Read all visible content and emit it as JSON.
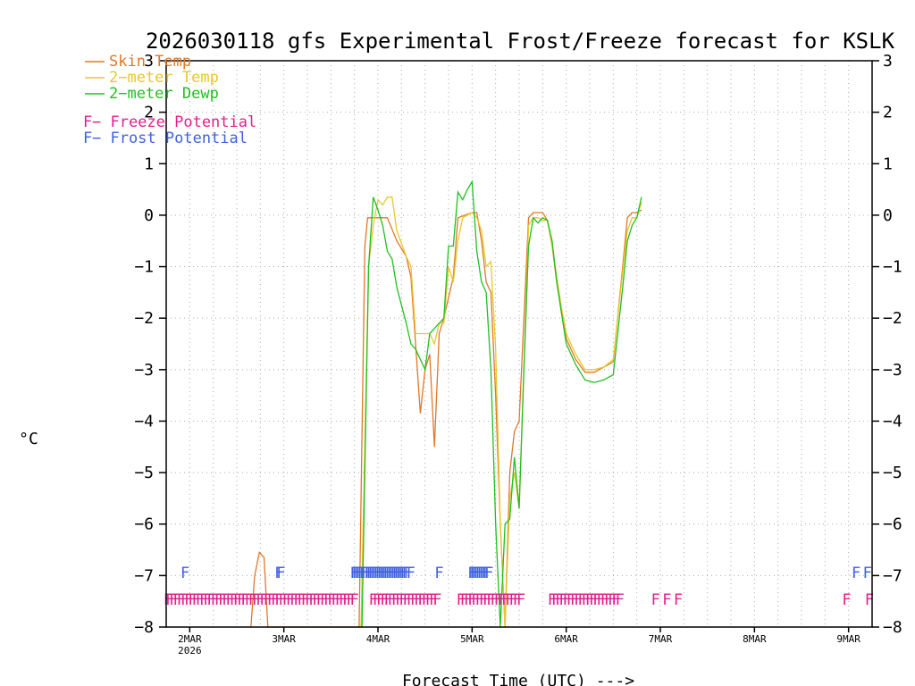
{
  "chart_data": {
    "type": "line",
    "title": "2026030118 gfs Experimental Frost/Freeze forecast for KSLK",
    "ylabel": "°C",
    "xlabel": "Forecast Time (UTC) --->",
    "ylim": [
      -8,
      3
    ],
    "xlim_days": [
      -0.25,
      7.25
    ],
    "y_ticks_left": [
      "3",
      "2",
      "1",
      "0",
      "−1",
      "−2",
      "−3",
      "−4",
      "−5",
      "−6",
      "−7",
      "−8"
    ],
    "y_ticks_right": [
      "3",
      "2",
      "1",
      "0",
      "−1",
      "−2",
      "−3",
      "−4",
      "−5",
      "−6",
      "−7",
      "−8"
    ],
    "x_ticks": [
      {
        "day": 0,
        "label": "2MAR",
        "sub": "2026"
      },
      {
        "day": 1,
        "label": "3MAR",
        "sub": ""
      },
      {
        "day": 2,
        "label": "4MAR",
        "sub": ""
      },
      {
        "day": 3,
        "label": "5MAR",
        "sub": ""
      },
      {
        "day": 4,
        "label": "6MAR",
        "sub": ""
      },
      {
        "day": 5,
        "label": "7MAR",
        "sub": ""
      },
      {
        "day": 6,
        "label": "8MAR",
        "sub": ""
      },
      {
        "day": 7,
        "label": "9MAR",
        "sub": ""
      }
    ],
    "legend": [
      {
        "label": "Skin Temp",
        "color": "#e07828"
      },
      {
        "label": "2−meter Temp",
        "color": "#e8c828"
      },
      {
        "label": "2−meter Dewp",
        "color": "#20c020"
      }
    ],
    "potential_legend": [
      {
        "mark": "F",
        "label": " − Freeze Potential",
        "color": "#e0208c"
      },
      {
        "mark": "F",
        "label": " − Frost Potential",
        "color": "#4060e0"
      }
    ],
    "series": [
      {
        "name": "Skin Temp",
        "color": "#e07828",
        "x": [
          0.65,
          0.69,
          0.74,
          0.79,
          0.83,
          1.8,
          1.86,
          1.89,
          2.1,
          2.2,
          2.3,
          2.35,
          2.4,
          2.45,
          2.5,
          2.55,
          2.6,
          2.65,
          2.7,
          2.75,
          2.8,
          2.85,
          3.0,
          3.05,
          3.1,
          3.15,
          3.2,
          3.25,
          3.3,
          3.35,
          3.4,
          3.45,
          3.5,
          3.55,
          3.6,
          3.65,
          3.7,
          3.75,
          3.8,
          3.85,
          3.9,
          3.95,
          4.0,
          4.1,
          4.2,
          4.3,
          4.4,
          4.5,
          4.6,
          4.65,
          4.7,
          4.75,
          4.8
        ],
        "y": [
          -8.0,
          -7.0,
          -6.55,
          -6.65,
          -8.0,
          -8.0,
          -0.6,
          -0.05,
          -0.05,
          -0.5,
          -0.8,
          -1.2,
          -2.5,
          -3.85,
          -3.0,
          -2.7,
          -4.5,
          -2.3,
          -2.0,
          -1.6,
          -1.2,
          -0.05,
          0.05,
          0.05,
          -0.5,
          -1.3,
          -1.5,
          -3.5,
          -6.0,
          -8.0,
          -5.0,
          -4.2,
          -4.0,
          -2.0,
          -0.05,
          0.05,
          0.05,
          0.05,
          -0.1,
          -0.6,
          -1.3,
          -1.9,
          -2.4,
          -2.8,
          -3.05,
          -3.05,
          -2.95,
          -2.85,
          -1.0,
          -0.05,
          0.05,
          0.05,
          0.1
        ]
      },
      {
        "name": "2-meter Temp",
        "color": "#e8c828",
        "x": [
          1.82,
          1.9,
          1.95,
          2.0,
          2.05,
          2.1,
          2.15,
          2.2,
          2.3,
          2.35,
          2.4,
          2.5,
          2.55,
          2.6,
          2.65,
          2.7,
          2.75,
          2.8,
          2.85,
          2.9,
          3.0,
          3.05,
          3.1,
          3.15,
          3.2,
          3.25,
          3.3,
          3.35,
          3.4,
          3.45,
          3.5,
          3.55,
          3.6,
          3.65,
          3.7,
          3.75,
          3.8,
          3.85,
          3.9,
          3.95,
          4.0,
          4.1,
          4.2,
          4.3,
          4.4,
          4.5,
          4.6,
          4.65,
          4.7,
          4.75,
          4.8
        ],
        "y": [
          -8.0,
          -1.0,
          -0.2,
          0.3,
          0.2,
          0.35,
          0.35,
          -0.3,
          -0.8,
          -1.0,
          -2.3,
          -2.3,
          -2.3,
          -2.5,
          -2.1,
          -2.1,
          -1.0,
          -1.3,
          -0.5,
          -0.05,
          0.05,
          -0.05,
          -0.3,
          -1.0,
          -0.9,
          -2.6,
          -6.0,
          -8.0,
          -5.5,
          -5.0,
          -5.7,
          -3.0,
          -0.2,
          -0.05,
          -0.05,
          -0.1,
          -0.1,
          -0.6,
          -1.2,
          -1.8,
          -2.3,
          -2.7,
          -3.0,
          -3.0,
          -2.95,
          -2.8,
          -1.1,
          -0.3,
          -0.05,
          -0.05,
          0.25
        ]
      },
      {
        "name": "2-meter Dewp",
        "color": "#20c020",
        "x": [
          1.83,
          1.9,
          1.95,
          2.0,
          2.05,
          2.1,
          2.15,
          2.2,
          2.3,
          2.35,
          2.4,
          2.5,
          2.55,
          2.6,
          2.65,
          2.7,
          2.75,
          2.8,
          2.85,
          2.9,
          2.95,
          3.0,
          3.05,
          3.1,
          3.15,
          3.2,
          3.25,
          3.3,
          3.35,
          3.4,
          3.45,
          3.5,
          3.55,
          3.6,
          3.65,
          3.7,
          3.75,
          3.8,
          3.85,
          3.9,
          3.95,
          4.0,
          4.1,
          4.2,
          4.3,
          4.4,
          4.5,
          4.6,
          4.65,
          4.7,
          4.75,
          4.8
        ],
        "y": [
          -8.0,
          -1.0,
          0.35,
          0.1,
          -0.2,
          -0.7,
          -0.85,
          -1.4,
          -2.1,
          -2.5,
          -2.6,
          -3.0,
          -2.3,
          -2.2,
          -2.1,
          -2.0,
          -0.6,
          -0.6,
          0.45,
          0.3,
          0.5,
          0.65,
          -0.7,
          -1.3,
          -1.5,
          -3.0,
          -6.0,
          -8.0,
          -6.0,
          -5.9,
          -4.7,
          -5.7,
          -3.0,
          -0.6,
          -0.05,
          -0.15,
          -0.05,
          -0.1,
          -0.5,
          -1.3,
          -1.9,
          -2.5,
          -2.9,
          -3.2,
          -3.25,
          -3.2,
          -3.1,
          -1.4,
          -0.5,
          -0.2,
          -0.05,
          0.35
        ]
      }
    ],
    "frost_markers": {
      "color": "#4060e0",
      "label": "F",
      "days": [
        -0.05,
        0.95,
        0.97,
        1.75,
        1.77,
        1.79,
        1.81,
        1.83,
        1.85,
        1.87,
        1.9,
        1.92,
        1.94,
        1.96,
        1.98,
        2.0,
        2.02,
        2.04,
        2.06,
        2.08,
        2.1,
        2.12,
        2.14,
        2.16,
        2.18,
        2.2,
        2.22,
        2.24,
        2.26,
        2.28,
        2.3,
        2.32,
        2.35,
        2.65,
        3.0,
        3.02,
        3.04,
        3.06,
        3.08,
        3.1,
        3.12,
        3.14,
        3.16,
        3.18,
        7.08,
        7.2
      ]
    },
    "freeze_markers": {
      "color": "#e0208c",
      "label": "F",
      "spans": [
        {
          "from": -0.25,
          "to": 1.75,
          "step": 0.04
        },
        {
          "from": 1.95,
          "to": 2.65,
          "step": 0.04
        },
        {
          "from": 2.88,
          "to": 3.55,
          "step": 0.04
        },
        {
          "from": 3.85,
          "to": 4.6,
          "step": 0.04
        }
      ],
      "days": [
        4.95,
        5.07,
        5.19,
        6.98,
        7.22
      ]
    }
  }
}
